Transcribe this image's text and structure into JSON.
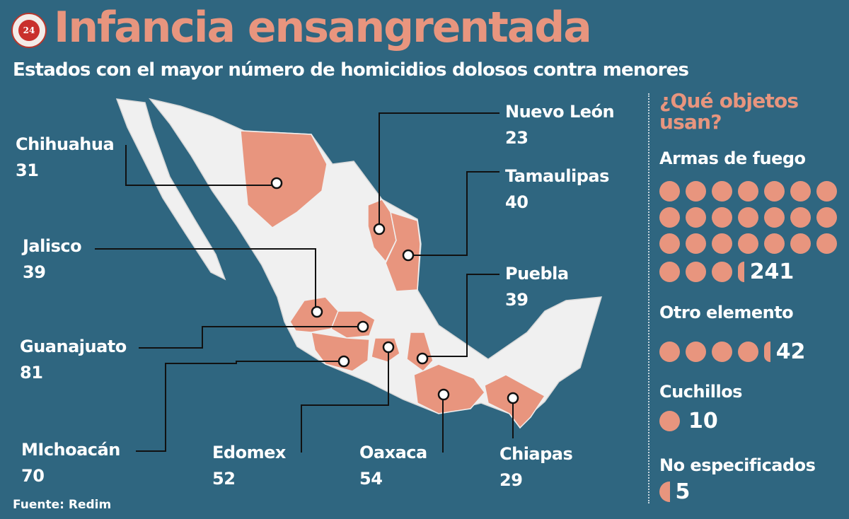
{
  "header": {
    "logo_text": "24 HORAS",
    "title": "Infancia ensangrentada",
    "subtitle": "Estados con el mayor número de homicidios dolosos contra menores"
  },
  "colors": {
    "background": "#2f6680",
    "accent": "#e8957e",
    "map_land": "#f0f0f0"
  },
  "states": [
    {
      "name": "Chihuahua",
      "value": "31"
    },
    {
      "name": "Jalisco",
      "value": "39"
    },
    {
      "name": "Guanajuato",
      "value": "81"
    },
    {
      "name": "MIchoacán",
      "value": "70"
    },
    {
      "name": "Edomex",
      "value": "52"
    },
    {
      "name": "Oaxaca",
      "value": "54"
    },
    {
      "name": "Chiapas",
      "value": "29"
    },
    {
      "name": "Nuevo León",
      "value": "23"
    },
    {
      "name": "Tamaulipas",
      "value": "40"
    },
    {
      "name": "Puebla",
      "value": "39"
    }
  ],
  "source": "Fuente: Redim",
  "sidebar": {
    "title": "¿Qué objetos usan?",
    "unit_per_dot": 10,
    "categories": [
      {
        "label": "Armas de fuego",
        "value": 241,
        "count": "241"
      },
      {
        "label": "Otro elemento",
        "value": 42,
        "count": "42"
      },
      {
        "label": "Cuchillos",
        "value": 10,
        "count": "10"
      },
      {
        "label": "No especificados",
        "value": 5,
        "count": "5"
      }
    ]
  }
}
